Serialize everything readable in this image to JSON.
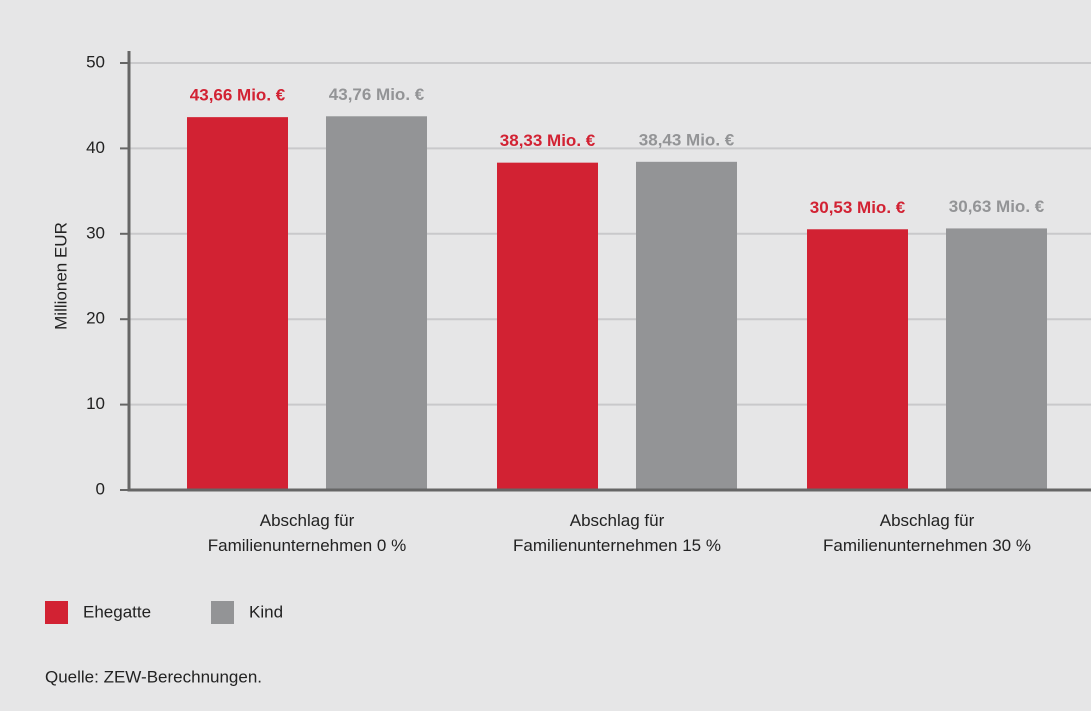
{
  "chart_data": {
    "type": "bar",
    "categories": [
      "Abschlag für Familienunternehmen 0 %",
      "Abschlag für Familienunternehmen 15 %",
      "Abschlag für Familienunternehmen 30 %"
    ],
    "series": [
      {
        "name": "Ehegatte",
        "color": "#d22233",
        "values": [
          43.66,
          38.33,
          30.53
        ],
        "value_labels": [
          "43,66 Mio. €",
          "38,33 Mio. €",
          "30,53 Mio. €"
        ]
      },
      {
        "name": "Kind",
        "color": "#939496",
        "values": [
          43.76,
          38.43,
          30.63
        ],
        "value_labels": [
          "43,76 Mio. €",
          "38,43 Mio. €",
          "30,63 Mio. €"
        ]
      }
    ],
    "y_label": "Millionen EUR",
    "ylim": [
      0,
      50
    ],
    "yticks": [
      0,
      10,
      20,
      30,
      40,
      50
    ],
    "grid": true,
    "source": "Quelle: ZEW-Berechnungen."
  }
}
